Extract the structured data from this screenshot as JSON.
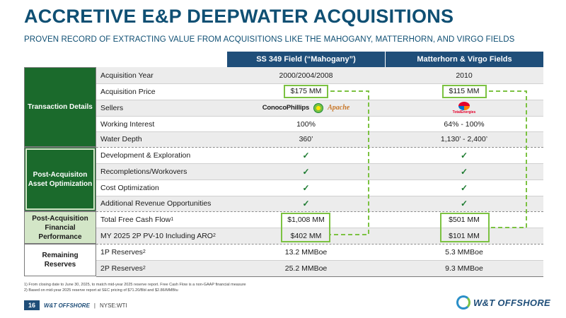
{
  "title": "ACCRETIVE E&P DEEPWATER ACQUISITIONS",
  "subtitle": "PROVEN RECORD OF EXTRACTING VALUE FROM ACQUISITIONS LIKE THE MAHOGANY, MATTERHORN, AND VIRGO FIELDS",
  "columns": [
    "SS 349 Field (“Mahogany”)",
    "Matterhorn & Virgo Fields"
  ],
  "groups": [
    "Transaction Details",
    "Post-Acquisiton Asset Optimization",
    "Post-Acquisition Financial Performance",
    "Remaining Reserves"
  ],
  "rows": {
    "acq_year": {
      "label": "Acquisition Year",
      "c1": "2000/2004/2008",
      "c2": "2010"
    },
    "acq_price": {
      "label": "Acquisition Price",
      "c1": "$175 MM",
      "c2": "$115 MM"
    },
    "sellers": {
      "label": "Sellers",
      "c1_logos": [
        "ConocoPhillips",
        "bp",
        "Apache"
      ],
      "c2_logos": [
        "TotalEnergies"
      ]
    },
    "working_interest": {
      "label": "Working Interest",
      "c1": "100%",
      "c2": "64% - 100%"
    },
    "water_depth": {
      "label": "Water Depth",
      "c1": "360’",
      "c2": "1,130’ - 2,400’"
    },
    "dev_exploration": {
      "label": "Development & Exploration",
      "c1": "✓",
      "c2": "✓"
    },
    "recompletions": {
      "label": "Recompletions/Workovers",
      "c1": "✓",
      "c2": "✓"
    },
    "cost_opt": {
      "label": "Cost Optimization",
      "c1": "✓",
      "c2": "✓"
    },
    "add_revenue": {
      "label": "Additional Revenue Opportunities",
      "c1": "✓",
      "c2": "✓"
    },
    "fcf": {
      "label": "Total Free Cash Flow",
      "sup": "1",
      "c1": "$1,008 MM",
      "c2": "$501 MM"
    },
    "pv10": {
      "label": "MY 2025 2P PV-10 Including ARO",
      "sup": "2",
      "c1": "$402 MM",
      "c2": "$101 MM"
    },
    "reserves_1p": {
      "label": "1P Reserves",
      "sup": "2",
      "c1": "13.2 MMBoe",
      "c2": "5.3 MMBoe"
    },
    "reserves_2p": {
      "label": "2P Reserves",
      "sup": "2",
      "c1": "25.2 MMBoe",
      "c2": "9.3 MMBoe"
    }
  },
  "footnotes": [
    "1)   From closing date to June 30, 2025, to match mid-year 2025 reserve report. Free Cash Flow is a non-GAAP financial measure",
    "2)   Based on mid-year 2025 reserve report at SEC pricing of $71.20/Bbl and $2.86/MMBtu"
  ],
  "footer": {
    "page": "16",
    "company": "W&T OFFSHORE",
    "separator": "|",
    "ticker": "NYSE:WTI",
    "brand": "W&T OFFSHORE"
  },
  "colors": {
    "navy": "#1f4e79",
    "dark_green": "#1b6a2c",
    "light_green": "#d3e6c7",
    "accent_green": "#7cc242"
  }
}
